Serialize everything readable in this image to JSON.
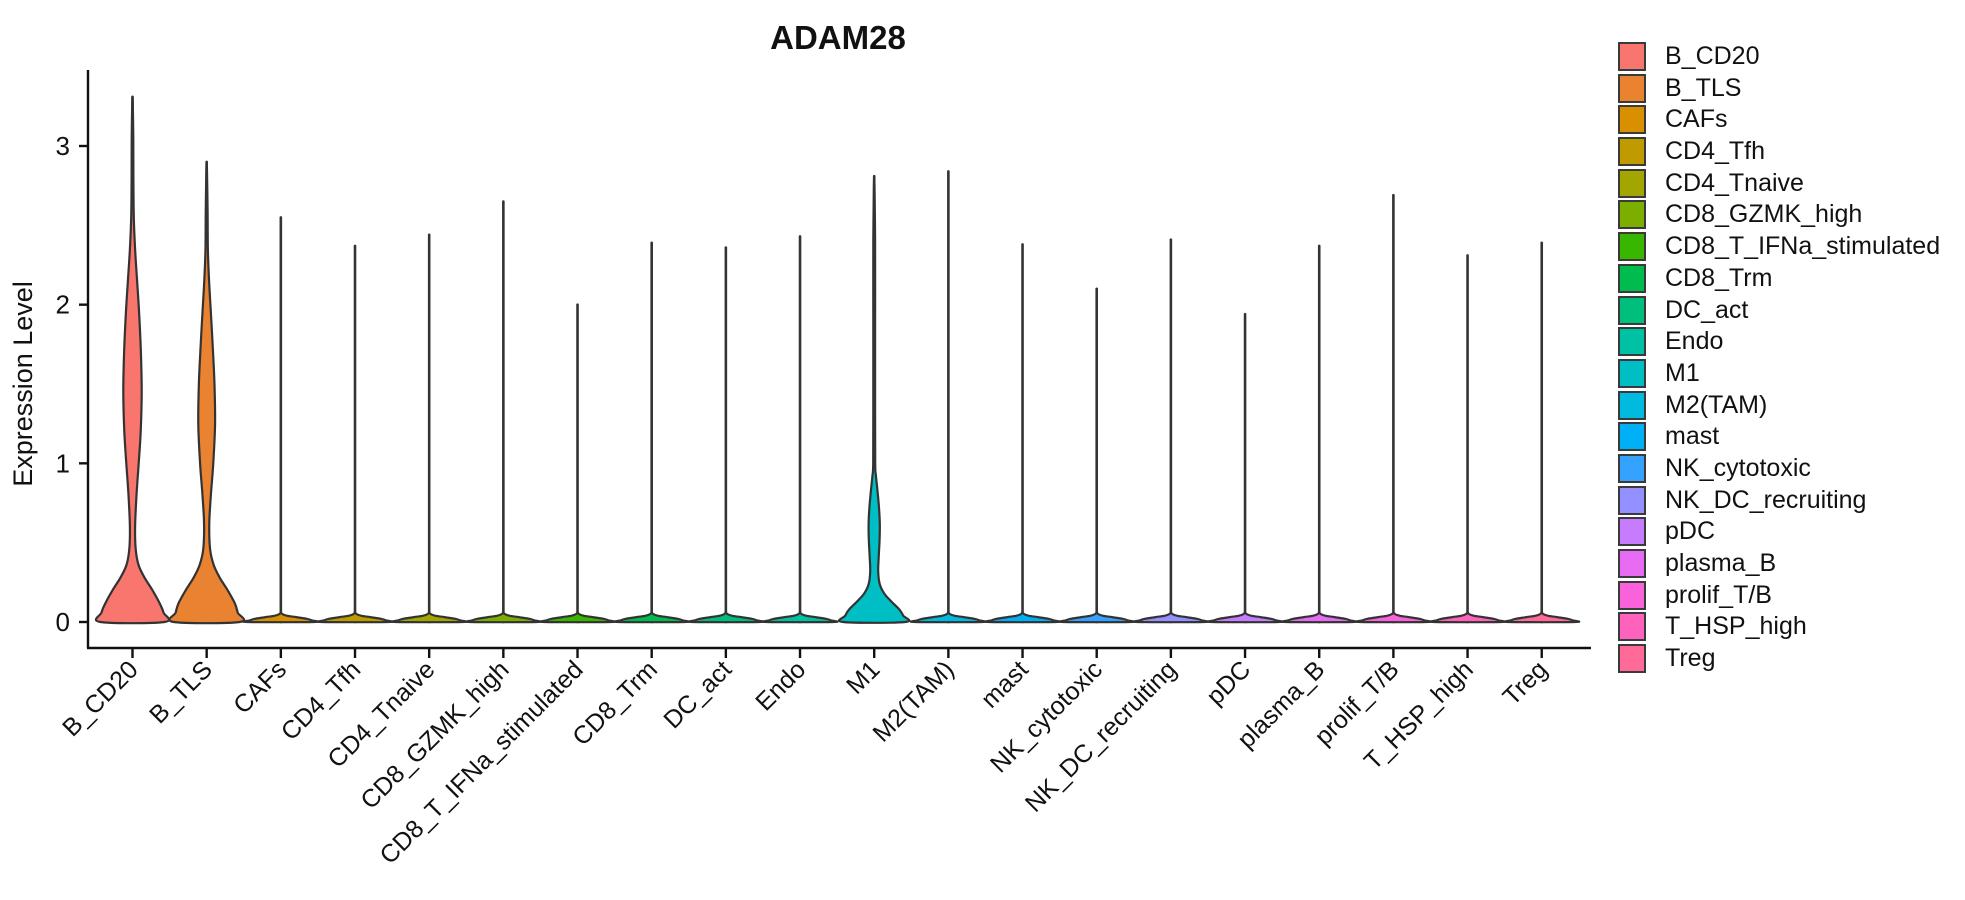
{
  "figure": {
    "background": "#FFFFFF"
  },
  "style": {
    "violin_outline_color": "#333333",
    "axis_color": "#111111",
    "text_color": "#111111",
    "title_color": "#111111"
  },
  "chart_data": {
    "type": "violin",
    "title": "ADAM28",
    "ylabel": "Expression Level",
    "xlabel": "",
    "y_ticks": [
      0,
      1,
      2,
      3
    ],
    "ylim": [
      -0.17,
      3.48
    ],
    "grid": "off",
    "legend_position": "right",
    "categories": [
      {
        "name": "B_CD20",
        "color": "#F8766D",
        "max": 3.31,
        "profile": [
          [
            0,
            32
          ],
          [
            0.06,
            31
          ],
          [
            0.12,
            27
          ],
          [
            0.2,
            20
          ],
          [
            0.28,
            12
          ],
          [
            0.36,
            6
          ],
          [
            0.46,
            3.2
          ],
          [
            0.6,
            2.6
          ],
          [
            0.8,
            4.0
          ],
          [
            1.0,
            6.2
          ],
          [
            1.2,
            8.2
          ],
          [
            1.45,
            9.2
          ],
          [
            1.7,
            8.4
          ],
          [
            1.95,
            6.6
          ],
          [
            2.15,
            4.6
          ],
          [
            2.35,
            2.6
          ],
          [
            2.55,
            1.3
          ],
          [
            2.8,
            0.9
          ],
          [
            3.05,
            0.8
          ],
          [
            3.31,
            0
          ]
        ]
      },
      {
        "name": "B_TLS",
        "color": "#EA8331",
        "max": 2.9,
        "profile": [
          [
            0,
            33
          ],
          [
            0.06,
            31
          ],
          [
            0.12,
            28
          ],
          [
            0.2,
            21
          ],
          [
            0.28,
            13
          ],
          [
            0.36,
            7
          ],
          [
            0.46,
            3.4
          ],
          [
            0.62,
            2.6
          ],
          [
            0.8,
            4.2
          ],
          [
            1.0,
            6.6
          ],
          [
            1.25,
            8.4
          ],
          [
            1.5,
            7.8
          ],
          [
            1.72,
            6.2
          ],
          [
            1.95,
            4.2
          ],
          [
            2.15,
            2.4
          ],
          [
            2.35,
            1.2
          ],
          [
            2.6,
            0.9
          ],
          [
            2.9,
            0
          ]
        ]
      },
      {
        "name": "CAFs",
        "color": "#D89000",
        "max": 2.55,
        "profile": [
          [
            0,
            33
          ],
          [
            0.01,
            31
          ],
          [
            0.02,
            26
          ],
          [
            0.03,
            16
          ],
          [
            0.04,
            6
          ],
          [
            0.05,
            1.5
          ],
          [
            0.06,
            0
          ]
        ]
      },
      {
        "name": "CD4_Tfh",
        "color": "#C09B00",
        "max": 2.37,
        "profile": [
          [
            0,
            33
          ],
          [
            0.01,
            31
          ],
          [
            0.02,
            26
          ],
          [
            0.03,
            16
          ],
          [
            0.04,
            6
          ],
          [
            0.05,
            1.5
          ],
          [
            0.06,
            0
          ]
        ]
      },
      {
        "name": "CD4_Tnaive",
        "color": "#A3A500",
        "max": 2.44,
        "profile": [
          [
            0,
            33
          ],
          [
            0.01,
            31
          ],
          [
            0.02,
            26
          ],
          [
            0.03,
            16
          ],
          [
            0.04,
            6
          ],
          [
            0.05,
            1.5
          ],
          [
            0.06,
            0
          ]
        ]
      },
      {
        "name": "CD8_GZMK_high",
        "color": "#7CAE00",
        "max": 2.65,
        "profile": [
          [
            0,
            33
          ],
          [
            0.01,
            31
          ],
          [
            0.02,
            26
          ],
          [
            0.03,
            16
          ],
          [
            0.04,
            6
          ],
          [
            0.05,
            1.5
          ],
          [
            0.06,
            0
          ]
        ]
      },
      {
        "name": "CD8_T_IFNa_stimulated",
        "color": "#39B600",
        "max": 2.0,
        "profile": [
          [
            0,
            33
          ],
          [
            0.01,
            31
          ],
          [
            0.02,
            26
          ],
          [
            0.03,
            16
          ],
          [
            0.04,
            6
          ],
          [
            0.05,
            1.5
          ],
          [
            0.06,
            0
          ]
        ]
      },
      {
        "name": "CD8_Trm",
        "color": "#00BB4E",
        "max": 2.39,
        "profile": [
          [
            0,
            33
          ],
          [
            0.01,
            31
          ],
          [
            0.02,
            26
          ],
          [
            0.03,
            16
          ],
          [
            0.04,
            6
          ],
          [
            0.05,
            1.5
          ],
          [
            0.06,
            0
          ]
        ]
      },
      {
        "name": "DC_act",
        "color": "#00BF7D",
        "max": 2.36,
        "profile": [
          [
            0,
            33
          ],
          [
            0.01,
            31
          ],
          [
            0.02,
            26
          ],
          [
            0.03,
            16
          ],
          [
            0.04,
            6
          ],
          [
            0.05,
            1.5
          ],
          [
            0.06,
            0
          ]
        ]
      },
      {
        "name": "Endo",
        "color": "#00C1A3",
        "max": 2.43,
        "profile": [
          [
            0,
            33
          ],
          [
            0.01,
            31
          ],
          [
            0.02,
            26
          ],
          [
            0.03,
            16
          ],
          [
            0.04,
            6
          ],
          [
            0.05,
            1.5
          ],
          [
            0.06,
            0
          ]
        ]
      },
      {
        "name": "M1",
        "color": "#00BFC4",
        "max": 2.81,
        "profile": [
          [
            0,
            31
          ],
          [
            0.04,
            29
          ],
          [
            0.08,
            25
          ],
          [
            0.13,
            17
          ],
          [
            0.18,
            10
          ],
          [
            0.24,
            5.5
          ],
          [
            0.32,
            4.0
          ],
          [
            0.42,
            4.6
          ],
          [
            0.52,
            5.4
          ],
          [
            0.62,
            5.6
          ],
          [
            0.72,
            4.8
          ],
          [
            0.82,
            3.4
          ],
          [
            0.92,
            1.8
          ],
          [
            1.0,
            1.0
          ],
          [
            1.4,
            0.9
          ],
          [
            1.9,
            0.9
          ],
          [
            2.4,
            0.9
          ],
          [
            2.81,
            0
          ]
        ]
      },
      {
        "name": "M2(TAM)",
        "color": "#00BAE0",
        "max": 2.84,
        "profile": [
          [
            0,
            33
          ],
          [
            0.01,
            31
          ],
          [
            0.02,
            26
          ],
          [
            0.03,
            16
          ],
          [
            0.04,
            6
          ],
          [
            0.05,
            1.5
          ],
          [
            0.06,
            0
          ]
        ]
      },
      {
        "name": "mast",
        "color": "#00B0F6",
        "max": 2.38,
        "profile": [
          [
            0,
            33
          ],
          [
            0.01,
            31
          ],
          [
            0.02,
            26
          ],
          [
            0.03,
            16
          ],
          [
            0.04,
            6
          ],
          [
            0.05,
            1.5
          ],
          [
            0.06,
            0
          ]
        ]
      },
      {
        "name": "NK_cytotoxic",
        "color": "#35A2FF",
        "max": 2.1,
        "profile": [
          [
            0,
            33
          ],
          [
            0.01,
            31
          ],
          [
            0.02,
            26
          ],
          [
            0.03,
            16
          ],
          [
            0.04,
            6
          ],
          [
            0.05,
            1.5
          ],
          [
            0.06,
            0
          ]
        ]
      },
      {
        "name": "NK_DC_recruiting",
        "color": "#9590FF",
        "max": 2.41,
        "profile": [
          [
            0,
            33
          ],
          [
            0.01,
            31
          ],
          [
            0.02,
            26
          ],
          [
            0.03,
            16
          ],
          [
            0.04,
            6
          ],
          [
            0.05,
            1.5
          ],
          [
            0.06,
            0
          ]
        ]
      },
      {
        "name": "pDC",
        "color": "#C77CFF",
        "max": 1.94,
        "profile": [
          [
            0,
            33
          ],
          [
            0.01,
            31
          ],
          [
            0.02,
            26
          ],
          [
            0.03,
            16
          ],
          [
            0.04,
            6
          ],
          [
            0.05,
            1.5
          ],
          [
            0.06,
            0
          ]
        ]
      },
      {
        "name": "plasma_B",
        "color": "#E76BF3",
        "max": 2.37,
        "profile": [
          [
            0,
            33
          ],
          [
            0.01,
            31
          ],
          [
            0.02,
            26
          ],
          [
            0.03,
            16
          ],
          [
            0.04,
            6
          ],
          [
            0.05,
            1.5
          ],
          [
            0.06,
            0
          ]
        ]
      },
      {
        "name": "prolif_T/B",
        "color": "#FA62DB",
        "max": 2.69,
        "profile": [
          [
            0,
            33
          ],
          [
            0.01,
            31
          ],
          [
            0.02,
            26
          ],
          [
            0.03,
            16
          ],
          [
            0.04,
            6
          ],
          [
            0.05,
            1.5
          ],
          [
            0.06,
            0
          ]
        ]
      },
      {
        "name": "T_HSP_high",
        "color": "#FF62BC",
        "max": 2.31,
        "profile": [
          [
            0,
            33
          ],
          [
            0.01,
            31
          ],
          [
            0.02,
            26
          ],
          [
            0.03,
            16
          ],
          [
            0.04,
            6
          ],
          [
            0.05,
            1.5
          ],
          [
            0.06,
            0
          ]
        ]
      },
      {
        "name": "Treg",
        "color": "#FF6A98",
        "max": 2.39,
        "profile": [
          [
            0,
            33
          ],
          [
            0.01,
            31
          ],
          [
            0.02,
            26
          ],
          [
            0.03,
            16
          ],
          [
            0.04,
            6
          ],
          [
            0.05,
            1.5
          ],
          [
            0.06,
            0
          ]
        ]
      }
    ]
  }
}
